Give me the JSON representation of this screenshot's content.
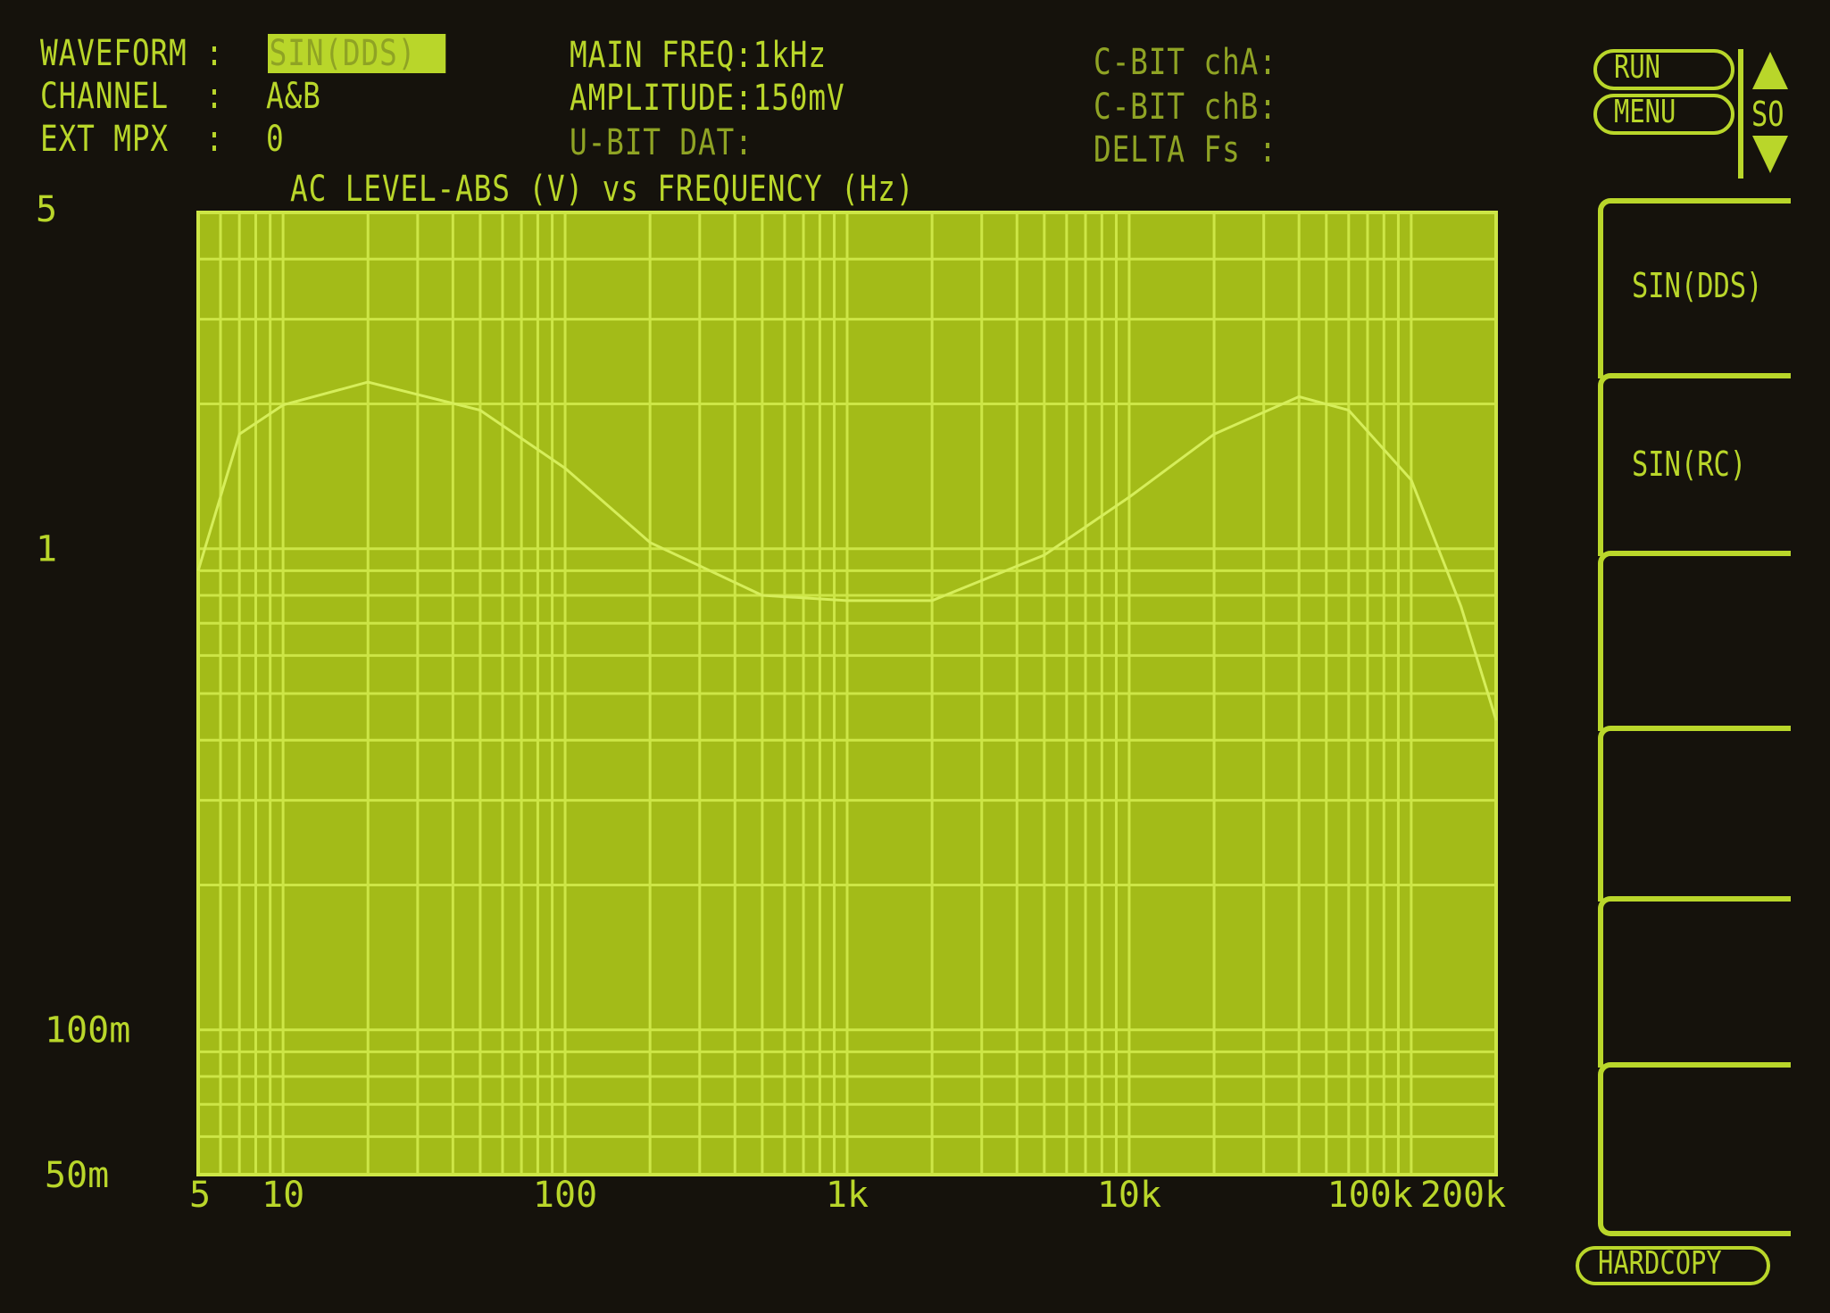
{
  "header": {
    "waveform_label": "WAVEFORM :",
    "waveform_value": "SIN(DDS)",
    "channel_label": "CHANNEL  :",
    "channel_value": "A&B",
    "ext_mpx_label": "EXT MPX  :",
    "ext_mpx_value": "0",
    "main_freq": "MAIN FREQ:1kHz",
    "amplitude": "AMPLITUDE:150mV",
    "u_bit": "U-BIT DAT:",
    "cbit_a": "C-BIT chA:",
    "cbit_b": "C-BIT chB:",
    "delta_fs": "DELTA Fs :"
  },
  "controls": {
    "run": "RUN",
    "menu": "MENU",
    "scroll": "SO",
    "softkeys": [
      "SIN(DDS)",
      "SIN(RC)",
      "",
      "",
      "",
      ""
    ],
    "hardcopy": "HARDCOPY"
  },
  "colors": {
    "phosphor": "#b9d62a",
    "plot_bg": "#a3bb18",
    "grid": "#cde646",
    "background": "#15120c"
  },
  "chart_data": {
    "type": "line",
    "title": "AC LEVEL-ABS (V) vs FREQUENCY (Hz)",
    "xscale": "log",
    "yscale": "log",
    "xlim": [
      5,
      200000
    ],
    "ylim": [
      0.05,
      5
    ],
    "grid": true,
    "xticks": [
      {
        "v": 5,
        "label": "5"
      },
      {
        "v": 10,
        "label": "10"
      },
      {
        "v": 100,
        "label": "100"
      },
      {
        "v": 1000,
        "label": "1k"
      },
      {
        "v": 10000,
        "label": "10k"
      },
      {
        "v": 100000,
        "label": "100k"
      },
      {
        "v": 200000,
        "label": "200k"
      }
    ],
    "yticks": [
      {
        "v": 5,
        "label": "5"
      },
      {
        "v": 1,
        "label": "1"
      },
      {
        "v": 0.1,
        "label": "100m"
      },
      {
        "v": 0.05,
        "label": "50m"
      }
    ],
    "series": [
      {
        "x": [
          5,
          7,
          10,
          20,
          50,
          100,
          200,
          500,
          1000,
          2000,
          5000,
          10000,
          20000,
          40000,
          60000,
          100000,
          150000,
          200000
        ],
        "y": [
          0.9,
          1.73,
          1.99,
          2.22,
          1.94,
          1.47,
          1.03,
          0.8,
          0.78,
          0.78,
          0.97,
          1.28,
          1.73,
          2.07,
          1.94,
          1.39,
          0.76,
          0.44
        ]
      }
    ]
  }
}
